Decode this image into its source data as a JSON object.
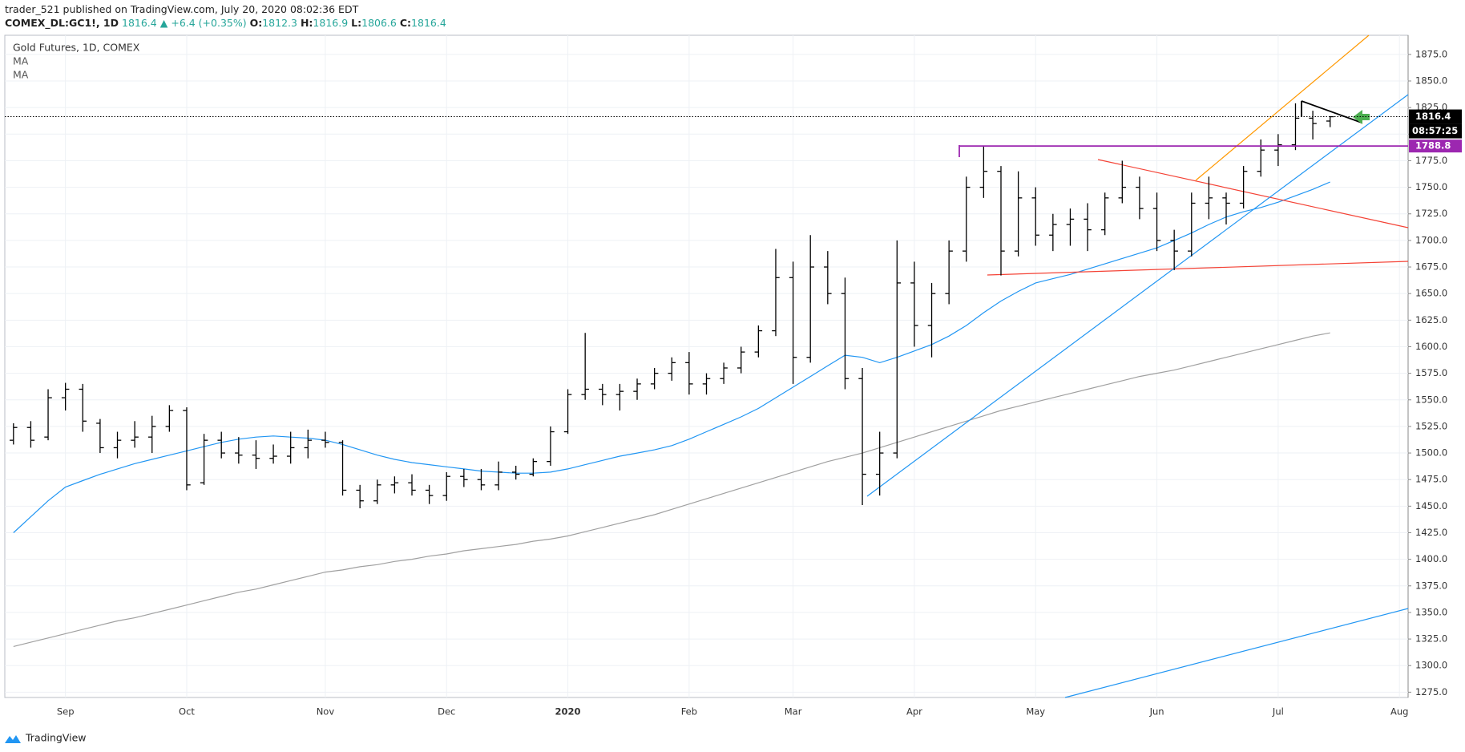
{
  "header": {
    "byline": "trader_521 published on TradingView.com, July 20, 2020 08:02:36 EDT"
  },
  "footer": {
    "logo_text": "TradingView"
  },
  "chart_data": {
    "type": "ohlc",
    "title": "Gold Futures, 1D, COMEX",
    "symbol": "COMEX_DL:GC1!, 1D",
    "change": "+6.4 (+0.35%)",
    "header_labels": [
      "O:",
      "H:",
      "L:",
      "C:"
    ],
    "countdown": "08:57:25",
    "bar_color": "#000000",
    "categories": [
      null,
      null,
      null,
      "Sep",
      null,
      null,
      null,
      null,
      null,
      null,
      "Oct",
      null,
      null,
      null,
      null,
      null,
      null,
      null,
      "Nov",
      null,
      null,
      null,
      null,
      null,
      null,
      "Dec",
      null,
      null,
      null,
      null,
      null,
      null,
      "2020",
      null,
      null,
      null,
      null,
      null,
      null,
      "Feb",
      null,
      null,
      null,
      null,
      null,
      "Mar",
      null,
      null,
      null,
      null,
      null,
      null,
      "Apr",
      null,
      null,
      null,
      null,
      null,
      null,
      "May",
      null,
      null,
      null,
      null,
      null,
      null,
      "Jun",
      null,
      null,
      null,
      null,
      null,
      null,
      "Jul",
      null,
      null,
      null,
      null,
      null,
      null,
      "Aug"
    ],
    "open": [
      1512,
      1524,
      1515,
      1552,
      1560,
      1528,
      1505,
      1512,
      1515,
      1525,
      1540,
      1472,
      1512,
      1500,
      1498,
      1495,
      1497,
      1505,
      1512,
      1510,
      1465,
      1455,
      1470,
      1472,
      1465,
      1460,
      1478,
      1475,
      1470,
      1482,
      1480,
      1492,
      1520,
      1555,
      1560,
      1555,
      1558,
      1565,
      1575,
      1585,
      1565,
      1570,
      1580,
      1595,
      1615,
      1665,
      1590,
      1675,
      1650,
      1570,
      1480,
      1500,
      1660,
      1620,
      1650,
      1690,
      1750,
      1765,
      1690,
      1740,
      1705,
      1715,
      1720,
      1710,
      1740,
      1750,
      1730,
      1700,
      1690,
      1735,
      1740,
      1735,
      1765,
      1785,
      1790,
      1815,
      1812.3,
      null,
      null,
      null,
      null
    ],
    "high": [
      1528,
      1530,
      1560,
      1566,
      1565,
      1532,
      1520,
      1530,
      1535,
      1545,
      1543,
      1518,
      1520,
      1515,
      1512,
      1508,
      1520,
      1522,
      1520,
      1512,
      1470,
      1475,
      1478,
      1480,
      1470,
      1482,
      1485,
      1485,
      1492,
      1488,
      1495,
      1525,
      1560,
      1613,
      1565,
      1565,
      1570,
      1580,
      1590,
      1595,
      1575,
      1585,
      1600,
      1620,
      1692,
      1680,
      1705,
      1690,
      1665,
      1580,
      1520,
      1700,
      1680,
      1660,
      1700,
      1760,
      1789,
      1770,
      1765,
      1750,
      1725,
      1730,
      1735,
      1745,
      1775,
      1760,
      1745,
      1710,
      1745,
      1760,
      1745,
      1770,
      1795,
      1800,
      1829,
      1822,
      1816.9,
      null,
      null,
      null,
      null
    ],
    "low": [
      1508,
      1505,
      1512,
      1540,
      1520,
      1500,
      1495,
      1505,
      1500,
      1520,
      1465,
      1470,
      1495,
      1490,
      1485,
      1490,
      1490,
      1495,
      1505,
      1460,
      1448,
      1452,
      1462,
      1460,
      1452,
      1455,
      1468,
      1465,
      1465,
      1475,
      1478,
      1488,
      1518,
      1550,
      1545,
      1540,
      1550,
      1560,
      1568,
      1555,
      1555,
      1565,
      1575,
      1590,
      1610,
      1565,
      1585,
      1640,
      1560,
      1451,
      1460,
      1495,
      1600,
      1590,
      1640,
      1680,
      1740,
      1667,
      1685,
      1695,
      1690,
      1695,
      1690,
      1705,
      1735,
      1720,
      1690,
      1672,
      1685,
      1720,
      1715,
      1730,
      1760,
      1770,
      1785,
      1795,
      1806.6,
      null,
      null,
      null,
      null
    ],
    "close": [
      1524,
      1512,
      1552,
      1560,
      1530,
      1505,
      1512,
      1515,
      1525,
      1540,
      1470,
      1512,
      1500,
      1498,
      1495,
      1497,
      1505,
      1512,
      1510,
      1465,
      1455,
      1470,
      1472,
      1465,
      1460,
      1478,
      1475,
      1470,
      1482,
      1480,
      1492,
      1520,
      1555,
      1560,
      1555,
      1558,
      1565,
      1575,
      1585,
      1565,
      1570,
      1580,
      1595,
      1615,
      1665,
      1590,
      1675,
      1650,
      1570,
      1480,
      1500,
      1660,
      1620,
      1650,
      1690,
      1750,
      1765,
      1690,
      1740,
      1705,
      1715,
      1720,
      1710,
      1740,
      1750,
      1730,
      1700,
      1690,
      1735,
      1740,
      1735,
      1765,
      1785,
      1790,
      1815,
      1810,
      1816.4,
      null,
      null,
      null,
      null
    ],
    "moving_averages": [
      {
        "name": "MA",
        "color": "#2196f3",
        "values": [
          1425,
          1440,
          1455,
          1468,
          1474,
          1480,
          1485,
          1490,
          1494,
          1498,
          1502,
          1506,
          1510,
          1513,
          1515,
          1516,
          1515,
          1514,
          1512,
          1508,
          1503,
          1498,
          1494,
          1491,
          1489,
          1487,
          1485,
          1483,
          1482,
          1481,
          1481,
          1482,
          1485,
          1489,
          1493,
          1497,
          1500,
          1503,
          1507,
          1513,
          1520,
          1527,
          1534,
          1542,
          1552,
          1562,
          1572,
          1582,
          1592,
          1590,
          1585,
          1590,
          1596,
          1602,
          1610,
          1620,
          1632,
          1643,
          1652,
          1660,
          1664,
          1668,
          1673,
          1678,
          1683,
          1688,
          1693,
          1700,
          1707,
          1715,
          1722,
          1727,
          1731,
          1736,
          1742,
          1748,
          1755,
          null,
          null,
          null,
          null
        ]
      },
      {
        "name": "MA",
        "color": "#a0a0a0",
        "values": [
          1318,
          1322,
          1326,
          1330,
          1334,
          1338,
          1342,
          1345,
          1349,
          1353,
          1357,
          1361,
          1365,
          1369,
          1372,
          1376,
          1380,
          1384,
          1388,
          1390,
          1393,
          1395,
          1398,
          1400,
          1403,
          1405,
          1408,
          1410,
          1412,
          1414,
          1417,
          1419,
          1422,
          1426,
          1430,
          1434,
          1438,
          1442,
          1447,
          1452,
          1457,
          1462,
          1467,
          1472,
          1477,
          1482,
          1487,
          1492,
          1496,
          1500,
          1505,
          1510,
          1515,
          1520,
          1525,
          1530,
          1535,
          1540,
          1544,
          1548,
          1552,
          1556,
          1560,
          1564,
          1568,
          1572,
          1575,
          1578,
          1582,
          1586,
          1590,
          1594,
          1598,
          1602,
          1606,
          1610,
          1613,
          null,
          null,
          null,
          null
        ]
      }
    ],
    "price_lines": [
      {
        "value": 1788.8,
        "color": "#9c27b0"
      }
    ],
    "ylim": [
      1270,
      1893
    ],
    "yticks": [
      {
        "value": 1275,
        "label": "1275.0"
      },
      {
        "value": 1300,
        "label": "1300.0"
      },
      {
        "value": 1325,
        "label": "1325.0"
      },
      {
        "value": 1350,
        "label": "1350.0"
      },
      {
        "value": 1375,
        "label": "1375.0"
      },
      {
        "value": 1400,
        "label": "1400.0"
      },
      {
        "value": 1425,
        "label": "1425.0"
      },
      {
        "value": 1450,
        "label": "1450.0"
      },
      {
        "value": 1475,
        "label": "1475.0"
      },
      {
        "value": 1500,
        "label": "1500.0"
      },
      {
        "value": 1525,
        "label": "1525.0"
      },
      {
        "value": 1550,
        "label": "1550.0"
      },
      {
        "value": 1575,
        "label": "1575.0"
      },
      {
        "value": 1600,
        "label": "1600.0"
      },
      {
        "value": 1625,
        "label": "1625.0"
      },
      {
        "value": 1650,
        "label": "1650.0"
      },
      {
        "value": 1675,
        "label": "1675.0"
      },
      {
        "value": 1700,
        "label": "1700.0"
      },
      {
        "value": 1725,
        "label": "1725.0"
      },
      {
        "value": 1750,
        "label": "1750.0"
      },
      {
        "value": 1775,
        "label": "1775.0"
      },
      {
        "value": 1800,
        "label": "1800.0"
      },
      {
        "value": 1825,
        "label": "1825.0"
      },
      {
        "value": 1850,
        "label": "1850.0"
      },
      {
        "value": 1875,
        "label": "1875.0"
      }
    ],
    "grid": true
  }
}
